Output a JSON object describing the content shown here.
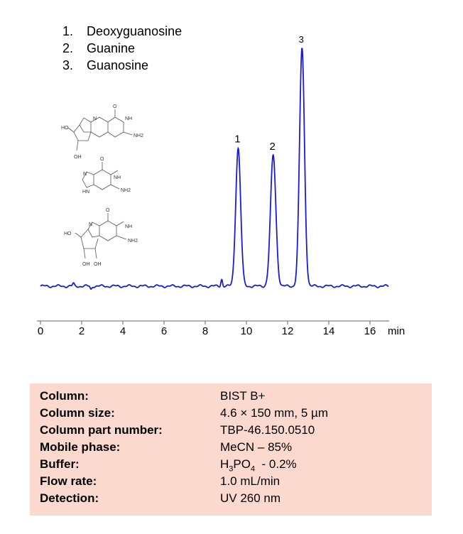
{
  "legend": [
    {
      "num": "1.",
      "name": "Deoxyguanosine"
    },
    {
      "num": "2.",
      "name": "Guanine"
    },
    {
      "num": "3.",
      "name": "Guanosine"
    }
  ],
  "structures": [
    {
      "name": "Deoxyguanosine",
      "labels": [
        "HO",
        "OH",
        "NH",
        "NH2",
        "O",
        "N"
      ]
    },
    {
      "name": "Guanine",
      "labels": [
        "HN",
        "NH",
        "NH2",
        "O",
        "N"
      ]
    },
    {
      "name": "Guanosine",
      "labels": [
        "HO",
        "OH",
        "OH",
        "NH",
        "NH2",
        "O",
        "N"
      ]
    }
  ],
  "chart_data": {
    "type": "line",
    "title": "",
    "xlabel": "min",
    "ylabel": "",
    "xlim": [
      0,
      17
    ],
    "xticks": [
      0,
      2,
      4,
      6,
      8,
      10,
      12,
      14,
      16
    ],
    "grid": false,
    "line_color": "#1a1adc",
    "peaks": [
      {
        "label": "1",
        "rt": 9.6,
        "height": 0.58
      },
      {
        "label": "2",
        "rt": 11.3,
        "height": 0.55
      },
      {
        "label": "3",
        "rt": 12.7,
        "height": 1.0
      }
    ],
    "minor_peaks": [
      {
        "rt": 1.6,
        "height": 0.01
      },
      {
        "rt": 2.45,
        "height": -0.013
      },
      {
        "rt": 8.8,
        "height": 0.03
      }
    ],
    "trace_range": [
      0,
      16.9
    ]
  },
  "conditions": {
    "column_key": "Column:",
    "column_val": "BIST B+",
    "size_key": "Column size:",
    "size_val": "4.6 × 150 mm, 5 µm",
    "part_key": "Column part number:",
    "part_val": "TBP-46.150.0510",
    "mobile_key": "Mobile phase:",
    "mobile_val": "MeCN – 85%",
    "buffer_key": "Buffer:",
    "buffer_val_a": "H",
    "buffer_val_sub1": "3",
    "buffer_val_b": "PO",
    "buffer_val_sub2": "4",
    "buffer_val_c": "  - 0.2%",
    "flow_key": "Flow rate:",
    "flow_val": "1.0 mL/min",
    "detect_key": "Detection:",
    "detect_val": "UV 260 nm"
  }
}
